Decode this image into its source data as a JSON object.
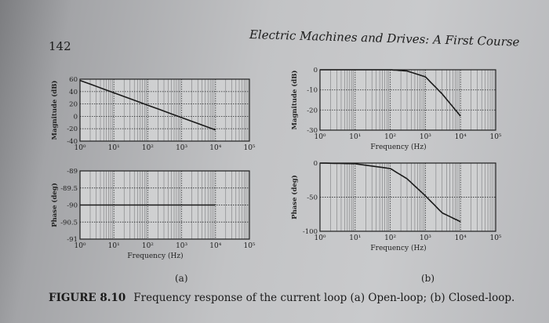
{
  "page": {
    "number": "142",
    "running_head": "Electric Machines and Drives: A First Course"
  },
  "figure": {
    "label": "FIGURE 8.10",
    "caption": "Frequency response of the current loop (a) Open-loop; (b) Closed-loop.",
    "subfig_a": "(a)",
    "subfig_b": "(b)"
  },
  "chart_data": [
    {
      "type": "line",
      "id": "a-magnitude",
      "xlabel": "",
      "ylabel": "Magnitude (dB)",
      "xscale": "log",
      "xlim": [
        1,
        100000
      ],
      "ylim": [
        -40,
        60
      ],
      "x_ticks": [
        "10⁰",
        "10¹",
        "10²",
        "10³",
        "10⁴",
        "10⁵"
      ],
      "y_ticks": [
        "60",
        "40",
        "20",
        "0",
        "-20",
        "-40"
      ],
      "grid": true,
      "series": [
        {
          "x": [
            1,
            10000
          ],
          "y": [
            58,
            -22
          ]
        }
      ]
    },
    {
      "type": "line",
      "id": "a-phase",
      "xlabel": "Frequency (Hz)",
      "ylabel": "Phase (deg)",
      "xscale": "log",
      "xlim": [
        1,
        100000
      ],
      "ylim": [
        -91,
        -89
      ],
      "x_ticks": [
        "10⁰",
        "10¹",
        "10²",
        "10³",
        "10⁴",
        "10⁵"
      ],
      "y_ticks": [
        "-89",
        "-89.5",
        "-90",
        "-90.5",
        "-91"
      ],
      "grid": true,
      "series": [
        {
          "x": [
            1,
            10000
          ],
          "y": [
            -90,
            -90
          ]
        }
      ]
    },
    {
      "type": "line",
      "id": "b-magnitude",
      "xlabel": "Frequency (Hz)",
      "ylabel": "Magnitude (dB)",
      "xscale": "log",
      "xlim": [
        1,
        100000
      ],
      "ylim": [
        -30,
        0
      ],
      "x_ticks": [
        "10⁰",
        "10¹",
        "10²",
        "10³",
        "10⁴",
        "10⁵"
      ],
      "y_ticks": [
        "0",
        "-10",
        "-20",
        "-30"
      ],
      "grid": true,
      "series": [
        {
          "x": [
            1,
            100,
            300,
            1000,
            3000,
            10000
          ],
          "y": [
            0,
            0,
            -0.6,
            -3.5,
            -12,
            -23
          ]
        }
      ]
    },
    {
      "type": "line",
      "id": "b-phase",
      "xlabel": "Frequency (Hz)",
      "ylabel": "Phase (deg)",
      "xscale": "log",
      "xlim": [
        1,
        100000
      ],
      "ylim": [
        -100,
        0
      ],
      "x_ticks": [
        "10⁰",
        "10¹",
        "10²",
        "10³",
        "10⁴",
        "10⁵"
      ],
      "y_ticks": [
        "0",
        "-50",
        "-100"
      ],
      "grid": true,
      "series": [
        {
          "x": [
            1,
            10,
            100,
            300,
            1000,
            3000,
            10000
          ],
          "y": [
            0,
            -1,
            -8,
            -23,
            -48,
            -73,
            -86
          ]
        }
      ]
    }
  ]
}
